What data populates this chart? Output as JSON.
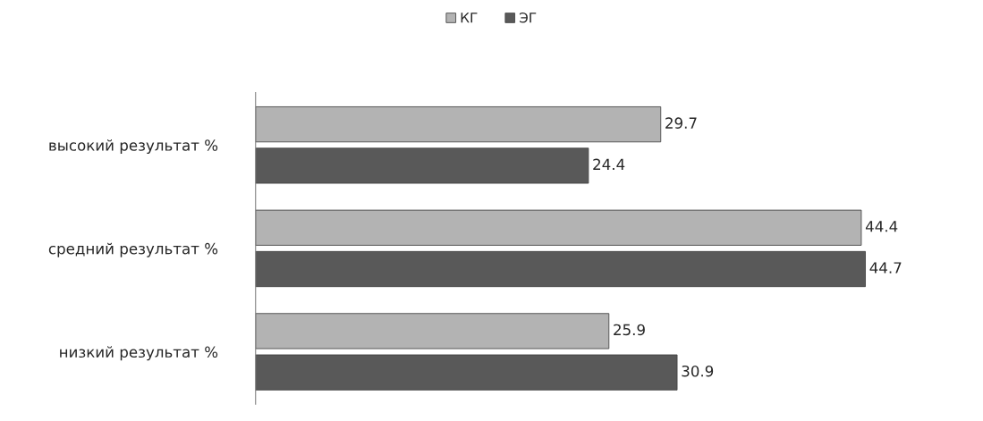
{
  "chart_data": {
    "type": "bar",
    "orientation": "horizontal",
    "categories": [
      "высокий результат %",
      "средний результат %",
      "низкий результат %"
    ],
    "series": [
      {
        "name": "КГ",
        "color": "#b3b3b3",
        "values": [
          29.7,
          44.4,
          25.9
        ]
      },
      {
        "name": "ЭГ",
        "color": "#595959",
        "values": [
          24.4,
          44.7,
          30.9
        ]
      }
    ],
    "data_labels": true,
    "legend": "top",
    "grid": false
  }
}
